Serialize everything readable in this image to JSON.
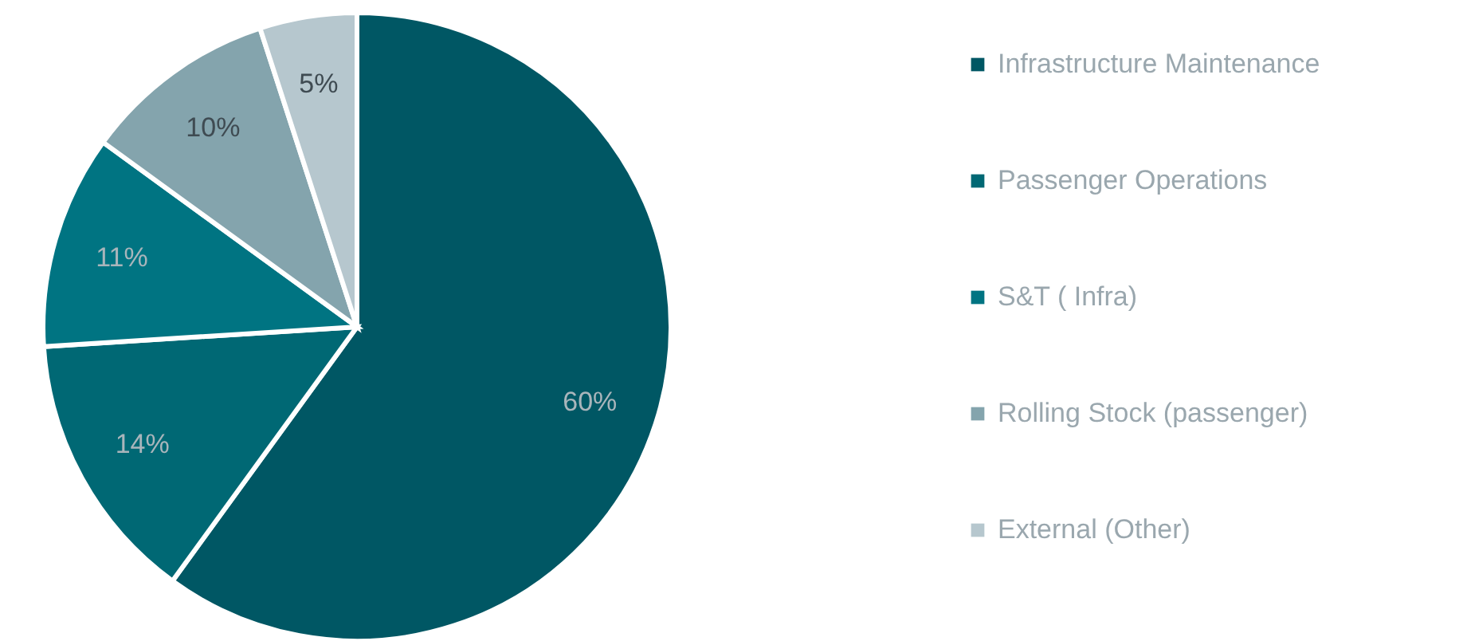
{
  "chart_data": {
    "type": "pie",
    "categories": [
      "Infrastructure Maintenance",
      "Passenger Operations",
      "S&T ( Infra)",
      "Rolling Stock (passenger)",
      "External (Other)"
    ],
    "values": [
      60,
      14,
      11,
      10,
      5
    ],
    "colors": [
      "#005764",
      "#006874",
      "#007482",
      "#84a4ad",
      "#b6c7ce"
    ],
    "value_labels": [
      "60%",
      "14%",
      "11%",
      "10%",
      "5%"
    ],
    "legend": "right"
  }
}
